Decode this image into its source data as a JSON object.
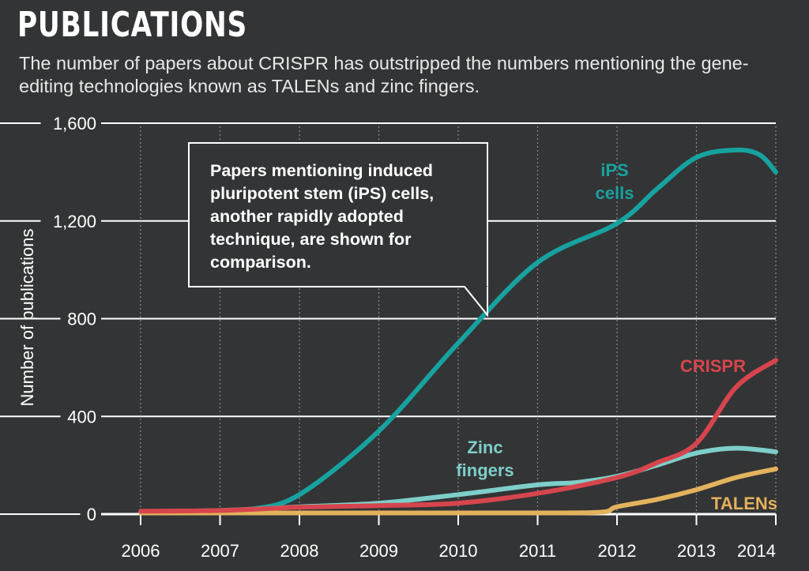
{
  "header": {
    "title": "PUBLICATIONS",
    "subtitle": "The number of papers about CRISPR has outstripped the numbers mentioning the gene-editing technologies known as TALENs and zinc fingers."
  },
  "callout": {
    "text": "Papers mentioning induced pluripotent stem (iPS) cells, another rapidly adopted technique, are shown for comparison."
  },
  "chart_data": {
    "type": "line",
    "title": "PUBLICATIONS",
    "xlabel": "",
    "ylabel": "Number of publications",
    "x": [
      2006,
      2007,
      2008,
      2009,
      2010,
      2011,
      2012,
      2013,
      2014
    ],
    "x_tick_labels": [
      "2006",
      "2007",
      "2008",
      "2009",
      "2010",
      "2011",
      "2012",
      "2013",
      "2014"
    ],
    "y_ticks": [
      0,
      400,
      800,
      1200,
      1600
    ],
    "y_tick_labels": [
      "0",
      "400",
      "800",
      "1,200",
      "1,600"
    ],
    "xlim": [
      2006,
      2014
    ],
    "ylim": [
      0,
      1600
    ],
    "grid": true,
    "series": [
      {
        "name": "iPS cells",
        "label_lines": [
          "iPS",
          "cells"
        ],
        "color": "#17a2a0",
        "x": [
          2006,
          2007,
          2007.4,
          2008,
          2009,
          2010,
          2011,
          2012,
          2012.5,
          2013,
          2013.5,
          2013.8,
          2014
        ],
        "values": [
          10,
          10,
          20,
          80,
          340,
          700,
          1030,
          1190,
          1330,
          1460,
          1490,
          1470,
          1400
        ]
      },
      {
        "name": "CRISPR",
        "label_lines": [
          "CRISPR"
        ],
        "color": "#d6454d",
        "x": [
          2006,
          2007,
          2008,
          2009,
          2010,
          2011,
          2012,
          2012.5,
          2013,
          2013.5,
          2014
        ],
        "values": [
          12,
          15,
          28,
          35,
          45,
          85,
          150,
          210,
          290,
          520,
          630
        ]
      },
      {
        "name": "Zinc fingers",
        "label_lines": [
          "Zinc",
          "fingers"
        ],
        "color": "#7ecec9",
        "x": [
          2006,
          2007,
          2008,
          2009,
          2010,
          2011,
          2011.5,
          2012,
          2012.5,
          2013,
          2013.5,
          2014
        ],
        "values": [
          10,
          15,
          30,
          45,
          80,
          120,
          130,
          155,
          200,
          250,
          270,
          255
        ]
      },
      {
        "name": "TALENs",
        "label_lines": [
          "TALENs"
        ],
        "color": "#e3b25c",
        "x": [
          2006,
          2007,
          2008,
          2009,
          2010,
          2011,
          2011.8,
          2012,
          2012.5,
          2013,
          2013.5,
          2014
        ],
        "values": [
          5,
          5,
          5,
          5,
          5,
          5,
          8,
          30,
          60,
          100,
          150,
          185
        ]
      }
    ]
  }
}
